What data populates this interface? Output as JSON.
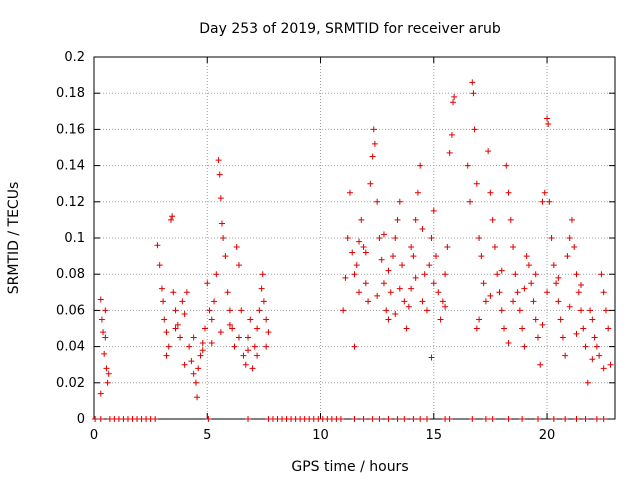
{
  "chart_data": {
    "type": "scatter",
    "title": "Day 253 of 2019, SRMTID for receiver arub",
    "xlabel": "GPS time / hours",
    "ylabel": "SRMTID / TECUs",
    "xlim": [
      0,
      23
    ],
    "ylim": [
      0,
      0.2
    ],
    "xticks": [
      0,
      5,
      10,
      15,
      20
    ],
    "xtick_labels": [
      "0",
      "5",
      "10",
      "15",
      "20"
    ],
    "yticks": [
      0,
      0.02,
      0.04,
      0.06,
      0.08,
      0.1,
      0.12,
      0.14,
      0.16,
      0.18,
      0.2
    ],
    "ytick_labels": [
      "0",
      "0.02",
      "0.04",
      "0.06",
      "0.08",
      "0.1",
      "0.12",
      "0.14",
      "0.16",
      "0.18",
      "0.2"
    ],
    "grid": true,
    "marker": "+",
    "color": "#e00000",
    "series": [
      {
        "name": "SRMTID",
        "points": [
          [
            0.3,
            0.066
          ],
          [
            0.35,
            0.055
          ],
          [
            0.4,
            0.048
          ],
          [
            0.45,
            0.036
          ],
          [
            0.5,
            0.045
          ],
          [
            0.55,
            0.028
          ],
          [
            0.6,
            0.02
          ],
          [
            0.65,
            0.025
          ],
          [
            0.3,
            0.014
          ],
          [
            0.5,
            0.06
          ],
          [
            2.8,
            0.096
          ],
          [
            2.9,
            0.085
          ],
          [
            3.0,
            0.072
          ],
          [
            3.05,
            0.065
          ],
          [
            3.1,
            0.055
          ],
          [
            3.2,
            0.048
          ],
          [
            3.3,
            0.04
          ],
          [
            3.4,
            0.11
          ],
          [
            3.45,
            0.112
          ],
          [
            3.5,
            0.07
          ],
          [
            3.6,
            0.06
          ],
          [
            3.7,
            0.052
          ],
          [
            3.8,
            0.045
          ],
          [
            3.9,
            0.065
          ],
          [
            4.0,
            0.058
          ],
          [
            4.1,
            0.07
          ],
          [
            4.2,
            0.04
          ],
          [
            4.3,
            0.032
          ],
          [
            4.4,
            0.025
          ],
          [
            4.5,
            0.02
          ],
          [
            4.55,
            0.012
          ],
          [
            4.6,
            0.028
          ],
          [
            4.7,
            0.035
          ],
          [
            4.8,
            0.042
          ],
          [
            4.9,
            0.05
          ],
          [
            5.0,
            0.075
          ],
          [
            5.1,
            0.06
          ],
          [
            5.2,
            0.055
          ],
          [
            5.3,
            0.065
          ],
          [
            5.4,
            0.08
          ],
          [
            5.5,
            0.143
          ],
          [
            5.55,
            0.135
          ],
          [
            5.6,
            0.122
          ],
          [
            5.65,
            0.108
          ],
          [
            5.7,
            0.1
          ],
          [
            5.8,
            0.09
          ],
          [
            5.9,
            0.07
          ],
          [
            6.0,
            0.06
          ],
          [
            6.1,
            0.05
          ],
          [
            6.2,
            0.04
          ],
          [
            6.3,
            0.095
          ],
          [
            6.4,
            0.085
          ],
          [
            6.5,
            0.06
          ],
          [
            6.6,
            0.035
          ],
          [
            6.7,
            0.03
          ],
          [
            6.8,
            0.045
          ],
          [
            6.9,
            0.055
          ],
          [
            7.0,
            0.028
          ],
          [
            7.1,
            0.04
          ],
          [
            7.2,
            0.05
          ],
          [
            7.3,
            0.06
          ],
          [
            7.4,
            0.072
          ],
          [
            7.45,
            0.08
          ],
          [
            7.5,
            0.065
          ],
          [
            7.6,
            0.055
          ],
          [
            7.7,
            0.048
          ],
          [
            3.2,
            0.035
          ],
          [
            3.6,
            0.05
          ],
          [
            4.0,
            0.03
          ],
          [
            4.4,
            0.045
          ],
          [
            4.8,
            0.038
          ],
          [
            5.2,
            0.042
          ],
          [
            5.6,
            0.048
          ],
          [
            6.0,
            0.052
          ],
          [
            6.4,
            0.045
          ],
          [
            6.8,
            0.038
          ],
          [
            7.2,
            0.035
          ],
          [
            7.6,
            0.04
          ],
          [
            11.0,
            0.06
          ],
          [
            11.1,
            0.078
          ],
          [
            11.2,
            0.1
          ],
          [
            11.3,
            0.125
          ],
          [
            11.4,
            0.092
          ],
          [
            11.5,
            0.04
          ],
          [
            11.6,
            0.085
          ],
          [
            11.7,
            0.07
          ],
          [
            11.8,
            0.11
          ],
          [
            11.9,
            0.095
          ],
          [
            12.0,
            0.075
          ],
          [
            12.1,
            0.065
          ],
          [
            12.2,
            0.13
          ],
          [
            12.3,
            0.145
          ],
          [
            12.35,
            0.16
          ],
          [
            12.4,
            0.152
          ],
          [
            12.5,
            0.12
          ],
          [
            12.6,
            0.1
          ],
          [
            12.7,
            0.088
          ],
          [
            12.8,
            0.075
          ],
          [
            12.9,
            0.06
          ],
          [
            13.0,
            0.055
          ],
          [
            13.1,
            0.07
          ],
          [
            13.2,
            0.09
          ],
          [
            13.3,
            0.1
          ],
          [
            13.4,
            0.11
          ],
          [
            13.5,
            0.12
          ],
          [
            13.6,
            0.085
          ],
          [
            13.7,
            0.065
          ],
          [
            13.8,
            0.05
          ],
          [
            13.9,
            0.062
          ],
          [
            14.0,
            0.072
          ],
          [
            14.1,
            0.09
          ],
          [
            14.2,
            0.11
          ],
          [
            14.3,
            0.125
          ],
          [
            14.4,
            0.14
          ],
          [
            14.5,
            0.105
          ],
          [
            14.6,
            0.08
          ],
          [
            14.7,
            0.06
          ],
          [
            14.8,
            0.085
          ],
          [
            14.9,
            0.1
          ],
          [
            15.0,
            0.115
          ],
          [
            15.1,
            0.09
          ],
          [
            15.2,
            0.07
          ],
          [
            15.3,
            0.055
          ],
          [
            15.4,
            0.065
          ],
          [
            15.5,
            0.08
          ],
          [
            15.6,
            0.095
          ],
          [
            15.7,
            0.147
          ],
          [
            15.8,
            0.157
          ],
          [
            15.85,
            0.175
          ],
          [
            15.9,
            0.178
          ],
          [
            11.5,
            0.08
          ],
          [
            12.0,
            0.092
          ],
          [
            12.5,
            0.068
          ],
          [
            13.0,
            0.082
          ],
          [
            13.5,
            0.072
          ],
          [
            14.0,
            0.095
          ],
          [
            14.5,
            0.065
          ],
          [
            15.0,
            0.075
          ],
          [
            15.5,
            0.062
          ],
          [
            12.8,
            0.102
          ],
          [
            13.3,
            0.058
          ],
          [
            14.2,
            0.078
          ],
          [
            14.9,
            0.034
          ],
          [
            11.7,
            0.098
          ],
          [
            16.5,
            0.14
          ],
          [
            16.6,
            0.12
          ],
          [
            16.7,
            0.186
          ],
          [
            16.75,
            0.18
          ],
          [
            16.8,
            0.16
          ],
          [
            16.9,
            0.13
          ],
          [
            17.0,
            0.1
          ],
          [
            17.1,
            0.09
          ],
          [
            17.2,
            0.075
          ],
          [
            17.3,
            0.065
          ],
          [
            17.4,
            0.148
          ],
          [
            17.5,
            0.125
          ],
          [
            17.6,
            0.11
          ],
          [
            17.7,
            0.095
          ],
          [
            17.8,
            0.08
          ],
          [
            17.9,
            0.07
          ],
          [
            18.0,
            0.06
          ],
          [
            18.1,
            0.05
          ],
          [
            18.2,
            0.14
          ],
          [
            18.3,
            0.125
          ],
          [
            18.4,
            0.11
          ],
          [
            18.5,
            0.095
          ],
          [
            18.6,
            0.08
          ],
          [
            18.7,
            0.07
          ],
          [
            18.8,
            0.06
          ],
          [
            18.9,
            0.05
          ],
          [
            19.0,
            0.04
          ],
          [
            19.1,
            0.09
          ],
          [
            19.2,
            0.085
          ],
          [
            19.3,
            0.075
          ],
          [
            19.4,
            0.065
          ],
          [
            19.5,
            0.055
          ],
          [
            19.6,
            0.045
          ],
          [
            19.7,
            0.03
          ],
          [
            19.8,
            0.12
          ],
          [
            19.9,
            0.125
          ],
          [
            20.0,
            0.166
          ],
          [
            20.05,
            0.163
          ],
          [
            20.1,
            0.12
          ],
          [
            20.2,
            0.1
          ],
          [
            20.3,
            0.085
          ],
          [
            20.4,
            0.075
          ],
          [
            20.5,
            0.065
          ],
          [
            20.6,
            0.055
          ],
          [
            20.7,
            0.045
          ],
          [
            20.8,
            0.035
          ],
          [
            20.9,
            0.09
          ],
          [
            21.0,
            0.1
          ],
          [
            21.1,
            0.11
          ],
          [
            21.2,
            0.095
          ],
          [
            21.3,
            0.08
          ],
          [
            21.4,
            0.07
          ],
          [
            21.5,
            0.06
          ],
          [
            21.6,
            0.05
          ],
          [
            21.7,
            0.04
          ],
          [
            21.8,
            0.02
          ],
          [
            21.9,
            0.06
          ],
          [
            22.0,
            0.055
          ],
          [
            22.1,
            0.045
          ],
          [
            22.2,
            0.04
          ],
          [
            22.3,
            0.035
          ],
          [
            22.4,
            0.08
          ],
          [
            22.5,
            0.07
          ],
          [
            22.6,
            0.06
          ],
          [
            22.7,
            0.05
          ],
          [
            22.8,
            0.03
          ],
          [
            17.0,
            0.055
          ],
          [
            17.5,
            0.068
          ],
          [
            18.0,
            0.082
          ],
          [
            18.5,
            0.065
          ],
          [
            19.0,
            0.072
          ],
          [
            19.5,
            0.08
          ],
          [
            20.0,
            0.07
          ],
          [
            20.5,
            0.078
          ],
          [
            21.0,
            0.062
          ],
          [
            21.5,
            0.074
          ],
          [
            22.0,
            0.033
          ],
          [
            22.5,
            0.028
          ],
          [
            16.9,
            0.05
          ],
          [
            18.3,
            0.042
          ],
          [
            19.8,
            0.052
          ],
          [
            21.3,
            0.047
          ],
          [
            0.05,
            0
          ],
          [
            0.3,
            0
          ],
          [
            0.7,
            0
          ],
          [
            0.9,
            0
          ],
          [
            1.1,
            0
          ],
          [
            1.3,
            0
          ],
          [
            1.5,
            0
          ],
          [
            1.7,
            0
          ],
          [
            1.9,
            0
          ],
          [
            2.1,
            0
          ],
          [
            2.3,
            0
          ],
          [
            2.5,
            0
          ],
          [
            2.7,
            0
          ],
          [
            5.05,
            0
          ],
          [
            6.8,
            0
          ],
          [
            7.7,
            0
          ],
          [
            7.9,
            0
          ],
          [
            8.1,
            0
          ],
          [
            8.3,
            0
          ],
          [
            8.5,
            0
          ],
          [
            8.7,
            0
          ],
          [
            8.9,
            0
          ],
          [
            9.1,
            0
          ],
          [
            9.3,
            0
          ],
          [
            9.5,
            0
          ],
          [
            9.7,
            0
          ],
          [
            9.9,
            0
          ],
          [
            10.1,
            0
          ],
          [
            10.3,
            0
          ],
          [
            10.5,
            0
          ],
          [
            10.7,
            0
          ],
          [
            10.9,
            0
          ],
          [
            11.5,
            0
          ],
          [
            11.9,
            0
          ],
          [
            12.3,
            0
          ],
          [
            12.6,
            0
          ],
          [
            13.0,
            0
          ],
          [
            13.4,
            0
          ],
          [
            13.7,
            0
          ],
          [
            14.1,
            0
          ],
          [
            14.4,
            0
          ],
          [
            14.7,
            0
          ],
          [
            15.5,
            0
          ],
          [
            15.7,
            0
          ],
          [
            16.7,
            0
          ],
          [
            17.3,
            0
          ],
          [
            17.6,
            0
          ],
          [
            18.3,
            0
          ],
          [
            18.9,
            0
          ],
          [
            19.6,
            0
          ],
          [
            20.3,
            0
          ],
          [
            20.8,
            0
          ],
          [
            21.3,
            0
          ],
          [
            21.7,
            0
          ],
          [
            22.2,
            0
          ],
          [
            22.5,
            0
          ]
        ]
      }
    ]
  }
}
